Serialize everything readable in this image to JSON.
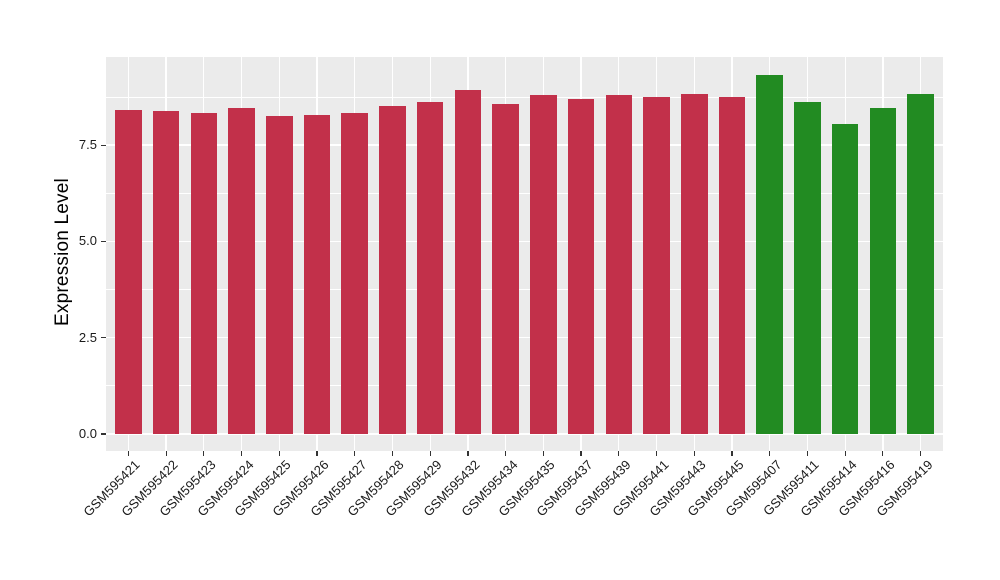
{
  "chart_data": {
    "type": "bar",
    "title": "",
    "xlabel": "",
    "ylabel": "Expression Level",
    "categories": [
      "GSM595421",
      "GSM595422",
      "GSM595423",
      "GSM595424",
      "GSM595425",
      "GSM595426",
      "GSM595427",
      "GSM595428",
      "GSM595429",
      "GSM595432",
      "GSM595434",
      "GSM595435",
      "GSM595437",
      "GSM595439",
      "GSM595441",
      "GSM595443",
      "GSM595445",
      "GSM595407",
      "GSM595411",
      "GSM595414",
      "GSM595416",
      "GSM595419"
    ],
    "values": [
      8.4,
      8.38,
      8.33,
      8.46,
      8.26,
      8.29,
      8.34,
      8.52,
      8.63,
      8.92,
      8.56,
      8.81,
      8.7,
      8.79,
      8.75,
      8.83,
      8.75,
      9.33,
      8.62,
      8.05,
      8.47,
      8.82
    ],
    "bar_colors": [
      "#C2304A",
      "#C2304A",
      "#C2304A",
      "#C2304A",
      "#C2304A",
      "#C2304A",
      "#C2304A",
      "#C2304A",
      "#C2304A",
      "#C2304A",
      "#C2304A",
      "#C2304A",
      "#C2304A",
      "#C2304A",
      "#C2304A",
      "#C2304A",
      "#C2304A",
      "#228B22",
      "#228B22",
      "#228B22",
      "#228B22",
      "#228B22"
    ],
    "color_legend": {
      "red_group_color": "#C2304A",
      "green_group_color": "#228B22"
    },
    "ylim": [
      0,
      9.79
    ],
    "yticks": [
      0.0,
      2.5,
      5.0,
      7.5
    ],
    "ytick_labels": [
      "0.0",
      "2.5",
      "5.0",
      "7.5"
    ],
    "minor_yticks": [
      1.25,
      3.75,
      6.25,
      8.75
    ],
    "x_tick_rotation_deg": 45,
    "grid": true,
    "legend_position": "none",
    "panel_background": "#EBEBEB",
    "grid_color": "#FFFFFF",
    "tick_color": "#333333",
    "axis_text_color": "#1a1a1a"
  }
}
